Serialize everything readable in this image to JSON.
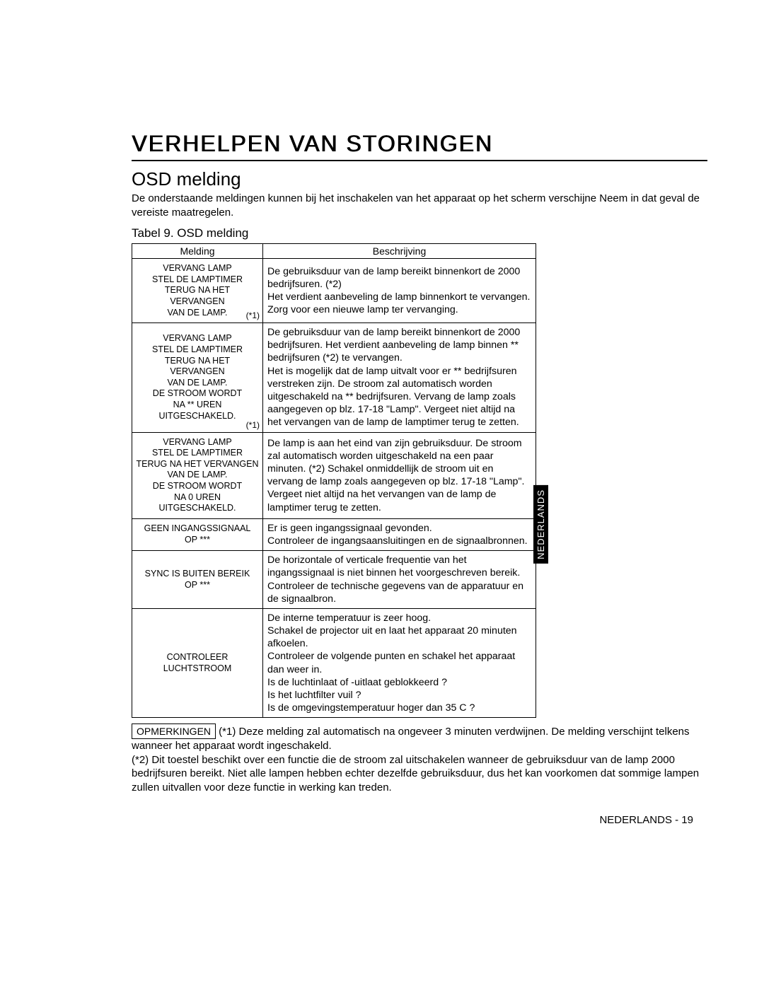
{
  "title": "VERHELPEN VAN STORINGEN",
  "subtitle": "OSD melding",
  "intro": "De onderstaande meldingen kunnen bij het inschakelen van het apparaat op het scherm verschijne Neem in dat geval de vereiste maatregelen.",
  "table_caption": "Tabel 9. OSD melding",
  "headers": {
    "col1": "Melding",
    "col2": "Beschrijving"
  },
  "rows": [
    {
      "msg": "VERVANG LAMP\nSTEL DE LAMPTIMER\nTERUG NA HET\nVERVANGEN\nVAN DE LAMP.",
      "mark": "(*1)",
      "desc": "De gebruiksduur van de lamp bereikt binnenkort de 2000 bedrijfsuren. (*2)\nHet verdient aanbeveling de lamp binnenkort te vervangen. Zorg voor een nieuwe lamp ter vervanging."
    },
    {
      "msg": "VERVANG LAMP\nSTEL DE LAMPTIMER\nTERUG NA HET\nVERVANGEN\nVAN DE LAMP.\nDE STROOM WORDT\nNA ** UREN\nUITGESCHAKELD.",
      "mark": "(*1)",
      "desc": "De gebruiksduur van de lamp bereikt binnenkort de 2000 bedrijfsuren. Het verdient aanbeveling de lamp binnen ** bedrijfsuren (*2)  te vervangen.\nHet is mogelijk dat de lamp uitvalt voor er ** bedrijfsuren verstreken zijn. De stroom zal automatisch worden uitgeschakeld na ** bedrijfsuren. Vervang de lamp zoals aangegeven op blz. 17-18 \"Lamp\". Vergeet niet altijd na het vervangen van de lamp de lamptimer terug te zetten."
    },
    {
      "msg": "VERVANG LAMP\nSTEL DE LAMPTIMER\nTERUG NA HET VERVANGEN\nVAN DE LAMP.\nDE STROOM WORDT\nNA 0 UREN UITGESCHAKELD.",
      "mark": "",
      "desc": "De lamp is aan het eind van zijn gebruiksduur. De stroom zal automatisch worden uitgeschakeld na een paar minuten. (*2) Schakel onmiddellijk de stroom uit  en vervang de lamp zoals aangegeven op blz. 17-18 \"Lamp\". Vergeet niet altijd na het vervangen van de lamp de lamptimer terug te zetten."
    },
    {
      "msg": "GEEN INGANGSSIGNAAL\nOP ***",
      "mark": "",
      "desc": "Er is geen ingangssignaal gevonden.\nControleer de ingangsaansluitingen en de signaalbronnen."
    },
    {
      "msg": "SYNC IS BUITEN BEREIK\nOP ***",
      "mark": "",
      "desc": "De horizontale of verticale frequentie van het ingangssignaal is niet binnen het voorgeschreven bereik.\nControleer de technische gegevens van de apparatuur en de signaalbron."
    },
    {
      "msg": "CONTROLEER LUCHTSTROOM",
      "mark": "",
      "desc": "De interne temperatuur is zeer hoog.\nSchakel de projector uit en laat het apparaat 20 minuten afkoelen.\nControleer de volgende punten en schakel het apparaat dan weer in.\nIs de luchtinlaat of -uitlaat geblokkeerd ?\nIs het luchtfilter vuil ?\nIs de omgevingstemperatuur hoger dan 35 C ?"
    }
  ],
  "notes_label": "OPMERKINGEN",
  "notes_text": "  (*1) Deze melding zal automatisch na ongeveer 3 minuten verdwijnen. De melding verschijnt telkens wanneer het apparaat wordt ingeschakeld.\n(*2) Dit toestel beschikt over een functie die de stroom zal uitschakelen wanneer de gebruiksduur van de lamp 2000 bedrijfsuren bereikt. Niet alle lampen hebben echter dezelfde gebruiksduur, dus het kan voorkomen dat sommige lampen zullen uitvallen voor deze functie in werking kan treden.",
  "footer": "NEDERLANDS - 19",
  "side_tab": "NEDERLANDS",
  "colors": {
    "bg": "#ffffff",
    "text": "#000000",
    "border": "#000000",
    "tab_bg": "#000000",
    "tab_fg": "#ffffff"
  }
}
